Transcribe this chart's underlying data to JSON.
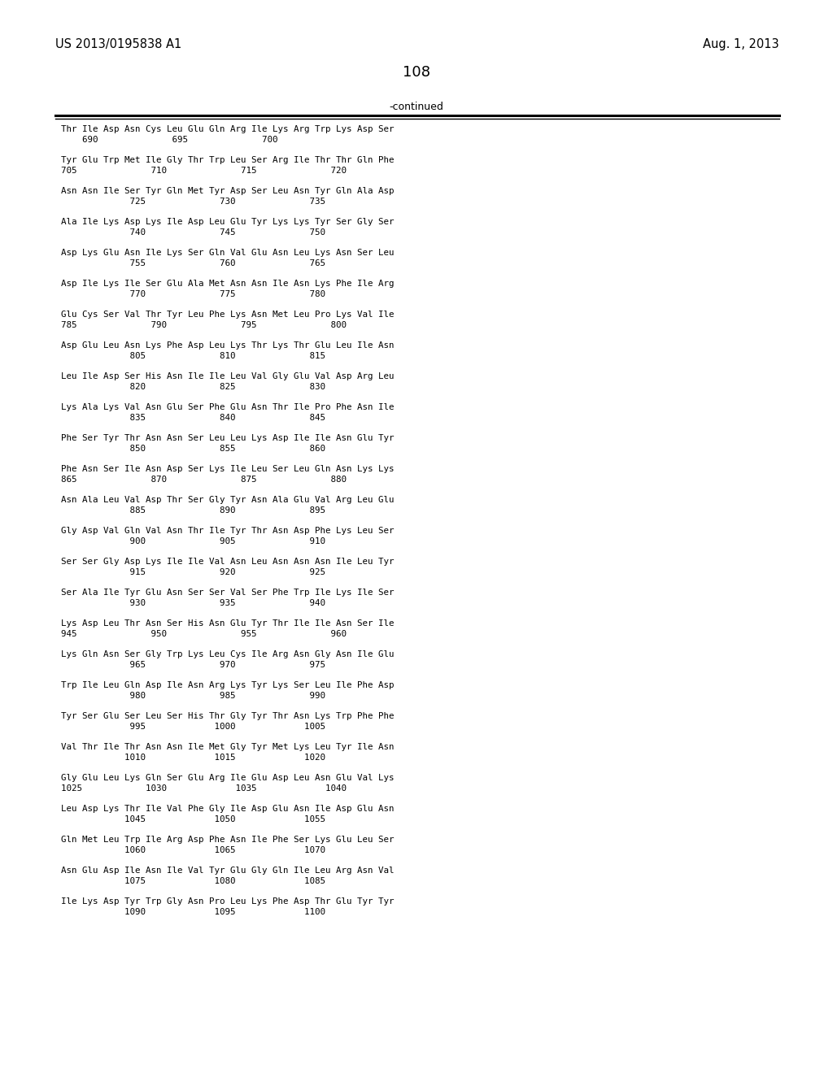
{
  "patent_number": "US 2013/0195838 A1",
  "date": "Aug. 1, 2013",
  "page_number": "108",
  "continued_label": "-continued",
  "background_color": "#ffffff",
  "text_color": "#000000",
  "lines": [
    [
      "Thr Ile Asp Asn Cys Leu Glu Gln Arg Ile Lys Arg Trp Lys Asp Ser",
      "    690              695              700"
    ],
    [
      "Tyr Glu Trp Met Ile Gly Thr Trp Leu Ser Arg Ile Thr Thr Gln Phe",
      "705              710              715              720"
    ],
    [
      "Asn Asn Ile Ser Tyr Gln Met Tyr Asp Ser Leu Asn Tyr Gln Ala Asp",
      "             725              730              735"
    ],
    [
      "Ala Ile Lys Asp Lys Ile Asp Leu Glu Tyr Lys Lys Tyr Ser Gly Ser",
      "             740              745              750"
    ],
    [
      "Asp Lys Glu Asn Ile Lys Ser Gln Val Glu Asn Leu Lys Asn Ser Leu",
      "             755              760              765"
    ],
    [
      "Asp Ile Lys Ile Ser Glu Ala Met Asn Asn Ile Asn Lys Phe Ile Arg",
      "             770              775              780"
    ],
    [
      "Glu Cys Ser Val Thr Tyr Leu Phe Lys Asn Met Leu Pro Lys Val Ile",
      "785              790              795              800"
    ],
    [
      "Asp Glu Leu Asn Lys Phe Asp Leu Lys Thr Lys Thr Glu Leu Ile Asn",
      "             805              810              815"
    ],
    [
      "Leu Ile Asp Ser His Asn Ile Ile Leu Val Gly Glu Val Asp Arg Leu",
      "             820              825              830"
    ],
    [
      "Lys Ala Lys Val Asn Glu Ser Phe Glu Asn Thr Ile Pro Phe Asn Ile",
      "             835              840              845"
    ],
    [
      "Phe Ser Tyr Thr Asn Asn Ser Leu Leu Lys Asp Ile Ile Asn Glu Tyr",
      "             850              855              860"
    ],
    [
      "Phe Asn Ser Ile Asn Asp Ser Lys Ile Leu Ser Leu Gln Asn Lys Lys",
      "865              870              875              880"
    ],
    [
      "Asn Ala Leu Val Asp Thr Ser Gly Tyr Asn Ala Glu Val Arg Leu Glu",
      "             885              890              895"
    ],
    [
      "Gly Asp Val Gln Val Asn Thr Ile Tyr Thr Asn Asp Phe Lys Leu Ser",
      "             900              905              910"
    ],
    [
      "Ser Ser Gly Asp Lys Ile Ile Val Asn Leu Asn Asn Asn Ile Leu Tyr",
      "             915              920              925"
    ],
    [
      "Ser Ala Ile Tyr Glu Asn Ser Ser Val Ser Phe Trp Ile Lys Ile Ser",
      "             930              935              940"
    ],
    [
      "Lys Asp Leu Thr Asn Ser His Asn Glu Tyr Thr Ile Ile Asn Ser Ile",
      "945              950              955              960"
    ],
    [
      "Lys Gln Asn Ser Gly Trp Lys Leu Cys Ile Arg Asn Gly Asn Ile Glu",
      "             965              970              975"
    ],
    [
      "Trp Ile Leu Gln Asp Ile Asn Arg Lys Tyr Lys Ser Leu Ile Phe Asp",
      "             980              985              990"
    ],
    [
      "Tyr Ser Glu Ser Leu Ser His Thr Gly Tyr Thr Asn Lys Trp Phe Phe",
      "             995             1000             1005"
    ],
    [
      "Val Thr Ile Thr Asn Asn Ile Met Gly Tyr Met Lys Leu Tyr Ile Asn",
      "            1010             1015             1020"
    ],
    [
      "Gly Glu Leu Lys Gln Ser Glu Arg Ile Glu Asp Leu Asn Glu Val Lys",
      "1025            1030             1035             1040"
    ],
    [
      "Leu Asp Lys Thr Ile Val Phe Gly Ile Asp Glu Asn Ile Asp Glu Asn",
      "            1045             1050             1055"
    ],
    [
      "Gln Met Leu Trp Ile Arg Asp Phe Asn Ile Phe Ser Lys Glu Leu Ser",
      "            1060             1065             1070"
    ],
    [
      "Asn Glu Asp Ile Asn Ile Val Tyr Glu Gly Gln Ile Leu Arg Asn Val",
      "            1075             1080             1085"
    ],
    [
      "Ile Lys Asp Tyr Trp Gly Asn Pro Leu Lys Phe Asp Thr Glu Tyr Tyr",
      "            1090             1095             1100"
    ]
  ]
}
